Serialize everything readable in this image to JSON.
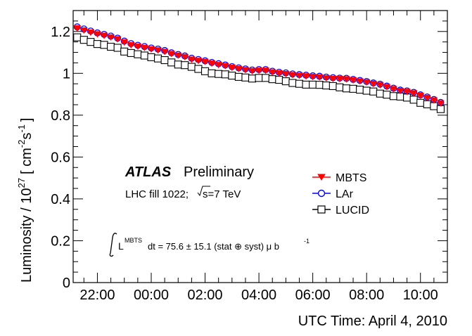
{
  "chart_data": {
    "type": "scatter",
    "title": "",
    "xlabel": "UTC Time: April 4, 2010",
    "ylabel_main": "Luminosity / 10",
    "ylabel_exp": "27",
    "ylabel_units_open": "[ cm",
    "ylabel_units_exp1": "-2",
    "ylabel_units_s": "s",
    "ylabel_units_exp2": "-1",
    "ylabel_units_close": "]",
    "ylim": [
      0,
      1.3
    ],
    "xlim_hours": [
      -2.9,
      11.0
    ],
    "grid": false,
    "legend_position": "middle-right",
    "x_ticks": [
      {
        "hour": -2,
        "label": "22:00"
      },
      {
        "hour": 0,
        "label": "00:00"
      },
      {
        "hour": 2,
        "label": "02:00"
      },
      {
        "hour": 4,
        "label": "04:00"
      },
      {
        "hour": 6,
        "label": "06:00"
      },
      {
        "hour": 8,
        "label": "08:00"
      },
      {
        "hour": 10,
        "label": "10:00"
      }
    ],
    "y_ticks": [
      {
        "value": 0,
        "label": "0"
      },
      {
        "value": 0.2,
        "label": "0.2"
      },
      {
        "value": 0.4,
        "label": "0.4"
      },
      {
        "value": 0.6,
        "label": "0.6"
      },
      {
        "value": 0.8,
        "label": "0.8"
      },
      {
        "value": 1.0,
        "label": "1"
      },
      {
        "value": 1.2,
        "label": "1.2"
      }
    ],
    "x_hours": [
      -2.75,
      -2.5,
      -2.25,
      -2.0,
      -1.75,
      -1.5,
      -1.25,
      -1.0,
      -0.75,
      -0.5,
      -0.25,
      0.0,
      0.25,
      0.5,
      0.75,
      1.0,
      1.25,
      1.5,
      1.75,
      2.0,
      2.25,
      2.5,
      2.75,
      3.0,
      3.25,
      3.5,
      3.75,
      4.0,
      4.25,
      4.5,
      4.75,
      5.0,
      5.25,
      5.5,
      5.75,
      6.0,
      6.25,
      6.5,
      6.75,
      7.0,
      7.25,
      7.5,
      7.75,
      8.0,
      8.25,
      8.5,
      8.75,
      9.0,
      9.25,
      9.5,
      9.75,
      10.0,
      10.25,
      10.5,
      10.75
    ],
    "series": [
      {
        "name": "MBTS",
        "color": "#ff0000",
        "marker": "triangle-down",
        "values": [
          1.215,
          1.205,
          1.195,
          1.187,
          1.18,
          1.172,
          1.163,
          1.148,
          1.135,
          1.128,
          1.122,
          1.115,
          1.11,
          1.103,
          1.093,
          1.085,
          1.078,
          1.066,
          1.06,
          1.055,
          1.047,
          1.04,
          1.035,
          1.027,
          1.021,
          1.016,
          1.011,
          1.013,
          1.013,
          1.005,
          1.0,
          0.997,
          0.992,
          0.989,
          0.986,
          0.983,
          0.981,
          0.977,
          0.974,
          0.973,
          0.972,
          0.967,
          0.962,
          0.957,
          0.95,
          0.944,
          0.935,
          0.925,
          0.916,
          0.912,
          0.905,
          0.893,
          0.883,
          0.871,
          0.857
        ]
      },
      {
        "name": "LAr",
        "color": "#0000ff",
        "marker": "circle-open",
        "values": [
          1.222,
          1.212,
          1.202,
          1.193,
          1.186,
          1.178,
          1.168,
          1.154,
          1.142,
          1.134,
          1.128,
          1.121,
          1.116,
          1.109,
          1.098,
          1.09,
          1.083,
          1.072,
          1.066,
          1.06,
          1.052,
          1.046,
          1.04,
          1.032,
          1.026,
          1.021,
          1.016,
          1.018,
          1.018,
          1.01,
          1.005,
          1.002,
          0.997,
          0.994,
          0.991,
          0.988,
          0.986,
          0.982,
          0.979,
          0.977,
          0.976,
          0.971,
          0.966,
          0.961,
          0.954,
          0.948,
          0.939,
          0.929,
          0.92,
          0.916,
          0.909,
          0.897,
          0.887,
          0.875,
          0.861
        ]
      },
      {
        "name": "LUCID",
        "color": "#000000",
        "marker": "square-open",
        "values": [
          1.172,
          1.16,
          1.15,
          1.14,
          1.136,
          1.127,
          1.122,
          1.104,
          1.097,
          1.091,
          1.085,
          1.077,
          1.071,
          1.063,
          1.052,
          1.042,
          1.039,
          1.031,
          1.021,
          1.01,
          1.0,
          0.997,
          0.995,
          0.989,
          0.983,
          0.98,
          0.975,
          0.978,
          0.978,
          0.972,
          0.969,
          0.962,
          0.954,
          0.95,
          0.946,
          0.946,
          0.945,
          0.942,
          0.939,
          0.933,
          0.928,
          0.926,
          0.922,
          0.917,
          0.913,
          0.903,
          0.898,
          0.891,
          0.889,
          0.884,
          0.874,
          0.859,
          0.852,
          0.843,
          0.829
        ]
      }
    ],
    "annotations": {
      "atlas": "ATLAS",
      "preliminary": "Preliminary",
      "fill_text": "LHC fill 1022;",
      "sqrt_s_text": "s=7 TeV",
      "integral_prefix": "L",
      "integral_superscript": "MBTS",
      "integral_text": "dt = 75.6 ± 15.1 (stat ⊕ syst) μ b",
      "integral_exp": "-1"
    }
  }
}
